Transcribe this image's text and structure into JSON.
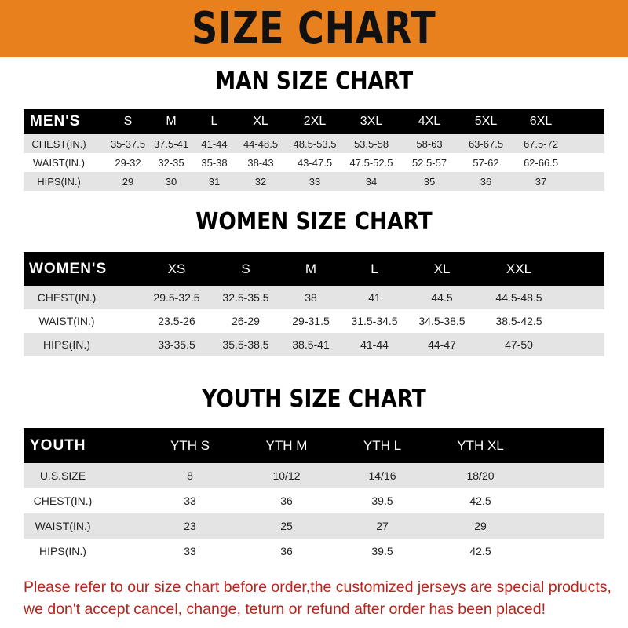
{
  "banner_title": "SIZE CHART",
  "men": {
    "title": "MAN SIZE CHART",
    "header": [
      "MEN'S",
      "S",
      "M",
      "L",
      "XL",
      "2XL",
      "3XL",
      "4XL",
      "5XL",
      "6XL"
    ],
    "rows": [
      [
        "CHEST(IN.)",
        "35-37.5",
        "37.5-41",
        "41-44",
        "44-48.5",
        "48.5-53.5",
        "53.5-58",
        "58-63",
        "63-67.5",
        "67.5-72"
      ],
      [
        "WAIST(IN.)",
        "29-32",
        "32-35",
        "35-38",
        "38-43",
        "43-47.5",
        "47.5-52.5",
        "52.5-57",
        "57-62",
        "62-66.5"
      ],
      [
        "HIPS(IN.)",
        "29",
        "30",
        "31",
        "32",
        "33",
        "34",
        "35",
        "36",
        "37"
      ]
    ]
  },
  "women": {
    "title": "WOMEN SIZE CHART",
    "header": [
      "WOMEN'S",
      "XS",
      "S",
      "M",
      "L",
      "XL",
      "XXL"
    ],
    "rows": [
      [
        "CHEST(IN.)",
        "29.5-32.5",
        "32.5-35.5",
        "38",
        "41",
        "44.5",
        "44.5-48.5"
      ],
      [
        "WAIST(IN.)",
        "23.5-26",
        "26-29",
        "29-31.5",
        "31.5-34.5",
        "34.5-38.5",
        "38.5-42.5"
      ],
      [
        "HIPS(IN.)",
        "33-35.5",
        "35.5-38.5",
        "38.5-41",
        "41-44",
        "44-47",
        "47-50"
      ]
    ]
  },
  "youth": {
    "title": "YOUTH SIZE CHART",
    "header": [
      "YOUTH",
      "YTH S",
      "YTH M",
      "YTH L",
      "YTH XL"
    ],
    "rows": [
      [
        "U.S.SIZE",
        "8",
        "10/12",
        "14/16",
        "18/20"
      ],
      [
        "CHEST(IN.)",
        "33",
        "36",
        "39.5",
        "42.5"
      ],
      [
        "WAIST(IN.)",
        "23",
        "25",
        "27",
        "29"
      ],
      [
        "HIPS(IN.)",
        "33",
        "36",
        "39.5",
        "42.5"
      ]
    ]
  },
  "footer": {
    "line1": "Please refer to our size chart before order,the customized jerseys are special products,",
    "line2": "we don't accept cancel, change, teturn or refund after order has been placed!"
  },
  "colors": {
    "banner": "#e8801e",
    "header_row": "#000000",
    "notice_text": "#b3261e"
  }
}
